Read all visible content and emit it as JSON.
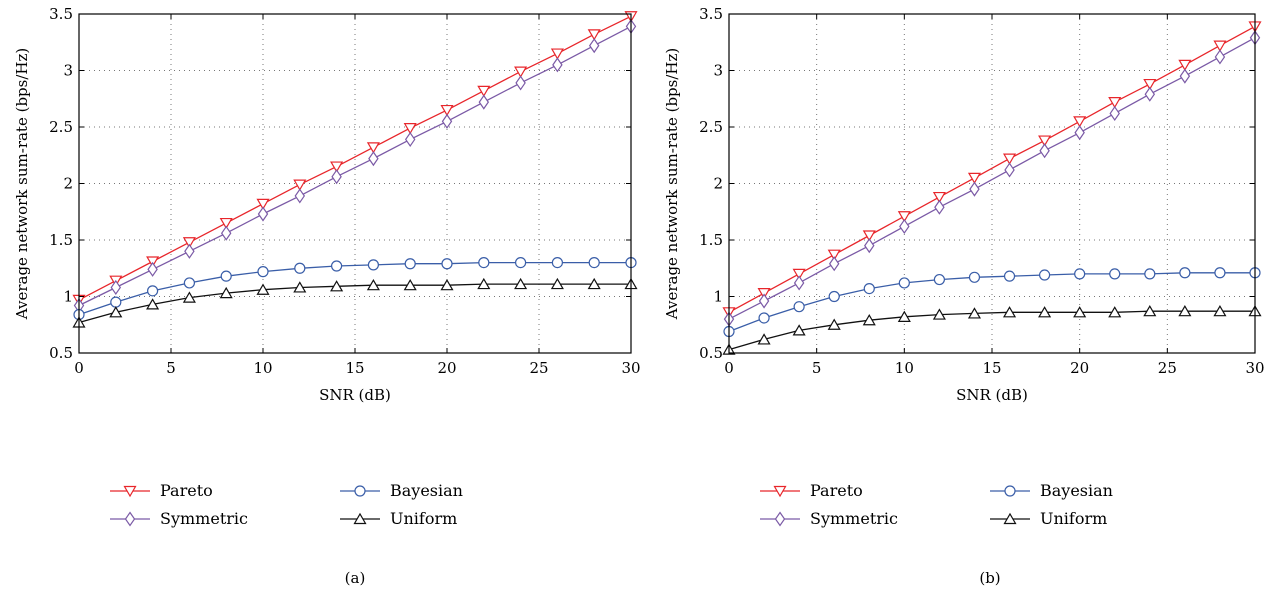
{
  "legend_labels": [
    "Pareto",
    "Symmetric",
    "Bayesian",
    "Uniform"
  ],
  "chart_data": [
    {
      "type": "line",
      "panel_label": "(a)",
      "xlabel": "SNR (dB)",
      "ylabel": "Average network sum-rate (bps/Hz)",
      "xlim": [
        0,
        30
      ],
      "ylim": [
        0.5,
        3.5
      ],
      "xticks": [
        0,
        5,
        10,
        15,
        20,
        25,
        30
      ],
      "yticks": [
        0.5,
        1,
        1.5,
        2,
        2.5,
        3,
        3.5
      ],
      "grid": true,
      "legend_position": "bottom",
      "x": [
        0,
        2,
        4,
        6,
        8,
        10,
        12,
        14,
        16,
        18,
        20,
        22,
        24,
        26,
        28,
        30
      ],
      "series": [
        {
          "name": "Pareto",
          "color": "#e8262b",
          "marker": "triangle-down",
          "values": [
            0.97,
            1.14,
            1.31,
            1.48,
            1.65,
            1.82,
            1.99,
            2.15,
            2.32,
            2.49,
            2.65,
            2.82,
            2.99,
            3.15,
            3.32,
            3.48
          ]
        },
        {
          "name": "Symmetric",
          "color": "#7b5aa6",
          "marker": "diamond",
          "values": [
            0.92,
            1.08,
            1.24,
            1.4,
            1.56,
            1.73,
            1.89,
            2.06,
            2.22,
            2.39,
            2.55,
            2.72,
            2.89,
            3.05,
            3.22,
            3.39
          ]
        },
        {
          "name": "Bayesian",
          "color": "#3a5ea8",
          "marker": "circle",
          "values": [
            0.84,
            0.95,
            1.05,
            1.12,
            1.18,
            1.22,
            1.25,
            1.27,
            1.28,
            1.29,
            1.29,
            1.3,
            1.3,
            1.3,
            1.3,
            1.3
          ]
        },
        {
          "name": "Uniform",
          "color": "#111111",
          "marker": "triangle-up",
          "values": [
            0.77,
            0.86,
            0.93,
            0.99,
            1.03,
            1.06,
            1.08,
            1.09,
            1.1,
            1.1,
            1.1,
            1.11,
            1.11,
            1.11,
            1.11,
            1.11
          ]
        }
      ]
    },
    {
      "type": "line",
      "panel_label": "(b)",
      "xlabel": "SNR (dB)",
      "ylabel": "Average network sum-rate (bps/Hz)",
      "xlim": [
        0,
        30
      ],
      "ylim": [
        0.5,
        3.5
      ],
      "xticks": [
        0,
        5,
        10,
        15,
        20,
        25,
        30
      ],
      "yticks": [
        0.5,
        1,
        1.5,
        2,
        2.5,
        3,
        3.5
      ],
      "grid": true,
      "legend_position": "bottom",
      "x": [
        0,
        2,
        4,
        6,
        8,
        10,
        12,
        14,
        16,
        18,
        20,
        22,
        24,
        26,
        28,
        30
      ],
      "series": [
        {
          "name": "Pareto",
          "color": "#e8262b",
          "marker": "triangle-down",
          "values": [
            0.86,
            1.03,
            1.2,
            1.37,
            1.54,
            1.71,
            1.88,
            2.05,
            2.22,
            2.38,
            2.55,
            2.72,
            2.88,
            3.05,
            3.22,
            3.39
          ]
        },
        {
          "name": "Symmetric",
          "color": "#7b5aa6",
          "marker": "diamond",
          "values": [
            0.8,
            0.96,
            1.12,
            1.29,
            1.45,
            1.62,
            1.79,
            1.95,
            2.12,
            2.29,
            2.45,
            2.62,
            2.79,
            2.95,
            3.12,
            3.29
          ]
        },
        {
          "name": "Bayesian",
          "color": "#3a5ea8",
          "marker": "circle",
          "values": [
            0.69,
            0.81,
            0.91,
            1.0,
            1.07,
            1.12,
            1.15,
            1.17,
            1.18,
            1.19,
            1.2,
            1.2,
            1.2,
            1.21,
            1.21,
            1.21
          ]
        },
        {
          "name": "Uniform",
          "color": "#111111",
          "marker": "triangle-up",
          "values": [
            0.53,
            0.62,
            0.7,
            0.75,
            0.79,
            0.82,
            0.84,
            0.85,
            0.86,
            0.86,
            0.86,
            0.86,
            0.87,
            0.87,
            0.87,
            0.87
          ]
        }
      ]
    }
  ]
}
